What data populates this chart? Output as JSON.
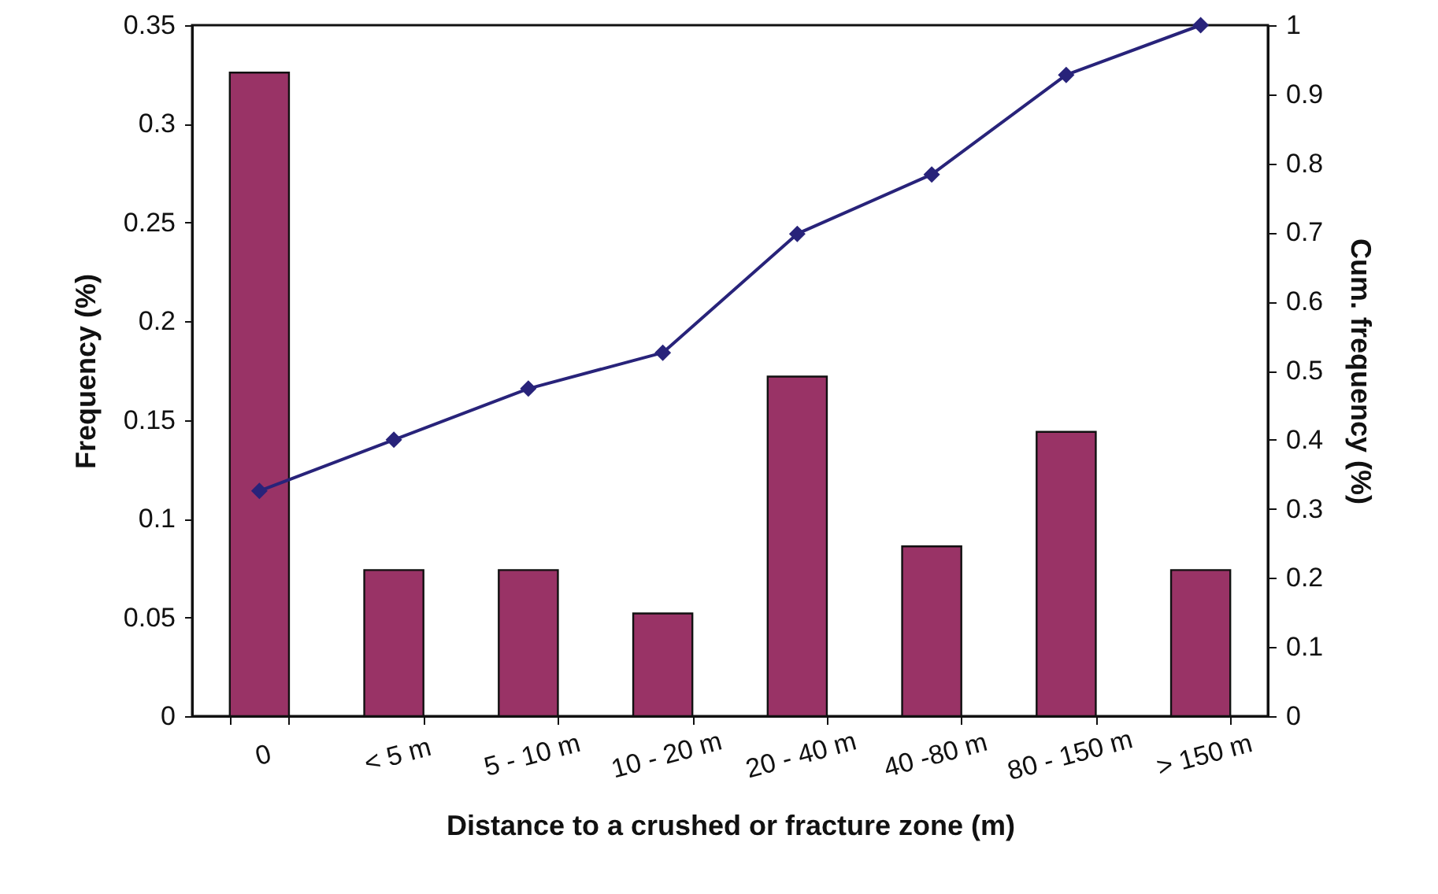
{
  "chart_data": {
    "type": "bar",
    "xlabel": "Distance to a crushed or fracture zone (m)",
    "ylabel": "Frequency (%)",
    "y2label": "Cum. frequency (%)",
    "categories": [
      "0",
      "< 5 m",
      "5 - 10 m",
      "10 - 20 m",
      "20 - 40 m",
      "40 -80 m",
      "80 - 150 m",
      "> 150 m"
    ],
    "series": [
      {
        "color": "#993366",
        "values": [
          0.326,
          0.074,
          0.074,
          0.052,
          0.172,
          0.086,
          0.144,
          0.074
        ]
      },
      {
        "type": "line",
        "axis": "y2",
        "color": "#28237a",
        "marker": "diamond",
        "values": [
          0.326,
          0.4,
          0.474,
          0.526,
          0.698,
          0.784,
          0.928,
          1
        ]
      }
    ],
    "ylim": [
      0,
      0.35
    ],
    "yticks": [
      0,
      0.05,
      0.1,
      0.15,
      0.2,
      0.25,
      0.3,
      0.35
    ],
    "y2lim": [
      0,
      1
    ],
    "y2ticks": [
      0,
      0.1,
      0.2,
      0.3,
      0.4,
      0.5,
      0.6,
      0.7,
      0.8,
      0.9,
      1
    ],
    "grid": false
  }
}
